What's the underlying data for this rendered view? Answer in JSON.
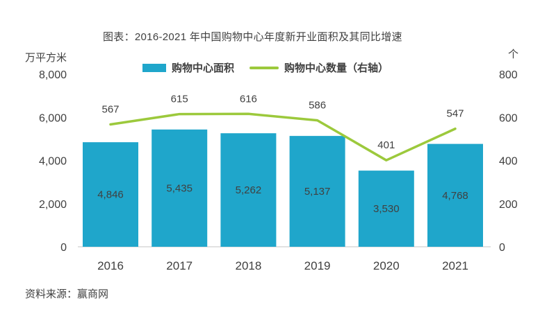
{
  "title": "图表：2016-2021 年中国购物中心年度新开业面积及其同比增速",
  "source": "资料来源：赢商网",
  "colors": {
    "bar": "#1FA6CB",
    "line": "#9CC93C",
    "text": "#404040",
    "axis_line": "#D9D9D9"
  },
  "chart_data": {
    "type": "bar",
    "subtype": "bar+line combo, line on secondary axis",
    "title": "图表：2016-2021 年中国购物中心年度新开业面积及其同比增速",
    "categories": [
      "2016",
      "2017",
      "2018",
      "2019",
      "2020",
      "2021"
    ],
    "series": [
      {
        "name": "购物中心面积",
        "type": "bar",
        "axis": "left",
        "color": "#1FA6CB",
        "values": [
          4846,
          5435,
          5262,
          5137,
          3530,
          4768
        ],
        "labels": [
          "4,846",
          "5,435",
          "5,262",
          "5,137",
          "3,530",
          "4,768"
        ]
      },
      {
        "name": "购物中心数量（右轴）",
        "type": "line",
        "axis": "right",
        "color": "#9CC93C",
        "values": [
          567,
          615,
          616,
          586,
          401,
          547
        ],
        "labels": [
          "567",
          "615",
          "616",
          "586",
          "401",
          "547"
        ]
      }
    ],
    "left_axis": {
      "label": "万平方米",
      "range": [
        0,
        8000
      ],
      "ticks": [
        "8,000",
        "6,000",
        "4,000",
        "2,000",
        "0"
      ]
    },
    "right_axis": {
      "label": "个",
      "range": [
        0,
        800
      ],
      "ticks": [
        "800",
        "600",
        "400",
        "200",
        "0"
      ]
    },
    "grid": false,
    "legend_position": "top"
  }
}
